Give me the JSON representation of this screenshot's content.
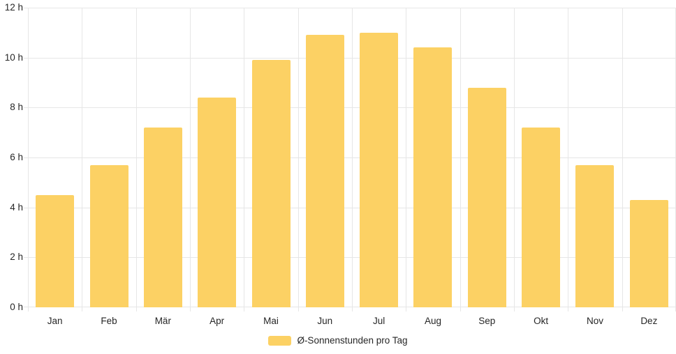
{
  "chart_data": {
    "type": "bar",
    "title": "",
    "categories": [
      "Jan",
      "Feb",
      "Mär",
      "Apr",
      "Mai",
      "Jun",
      "Jul",
      "Aug",
      "Sep",
      "Okt",
      "Nov",
      "Dez"
    ],
    "series": [
      {
        "name": "Ø-Sonnenstunden pro Tag",
        "values": [
          4.5,
          5.7,
          7.2,
          8.4,
          9.9,
          10.9,
          11.0,
          10.4,
          8.8,
          7.2,
          5.7,
          4.3
        ]
      }
    ],
    "xlabel": "",
    "ylabel": "",
    "ylim": [
      0,
      12
    ],
    "ytick_step": 2,
    "ytick_suffix": " h",
    "grid": true,
    "legend_position": "bottom"
  },
  "colors": {
    "bar": "#fcd164",
    "grid": "#e6e6e6",
    "text": "#262626",
    "background": "#ffffff"
  }
}
